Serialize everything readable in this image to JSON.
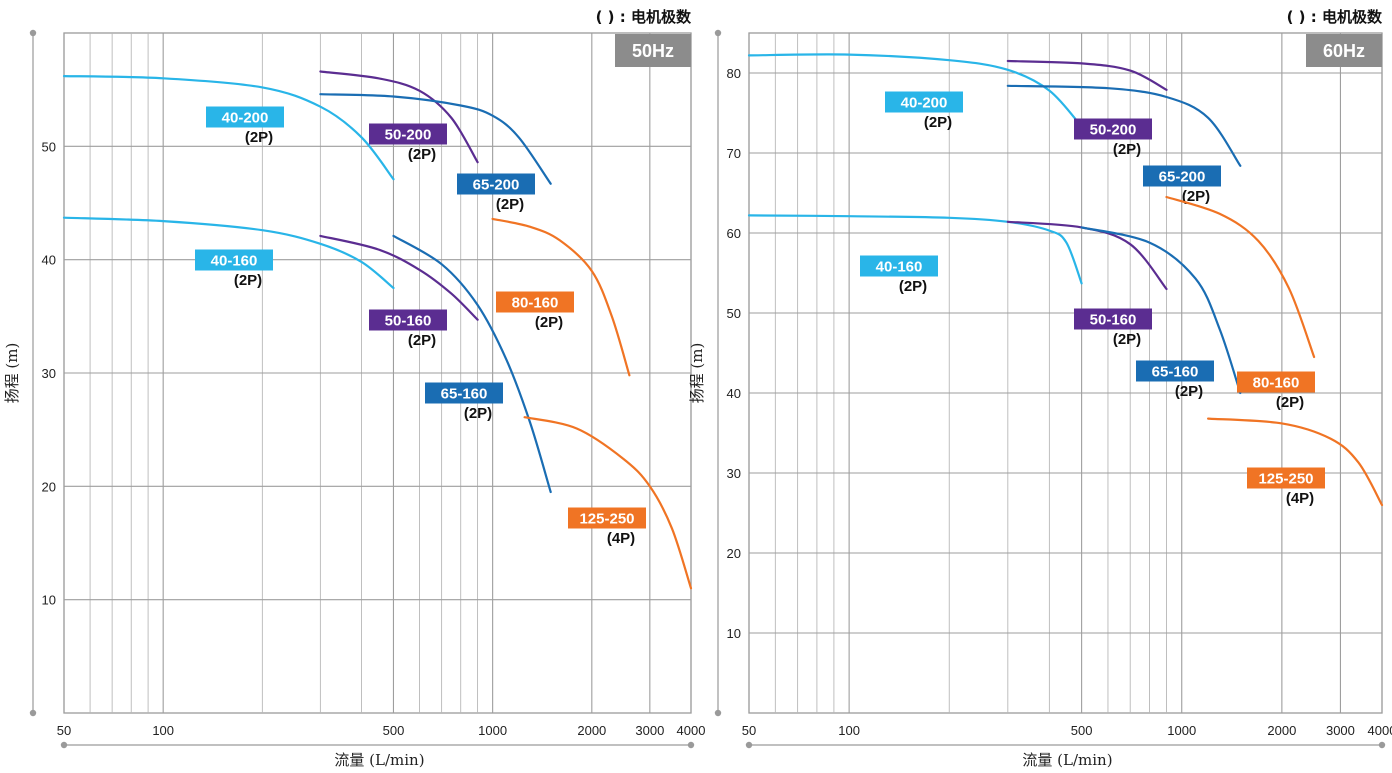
{
  "chart_data": [
    {
      "type": "line",
      "note": "( ) : 电机极数",
      "frequency": "50Hz",
      "xlabel": "流量 (L/min)",
      "ylabel": "扬程 (m)",
      "x_scale": "log",
      "xlim": [
        50,
        4000
      ],
      "ylim": [
        0,
        60
      ],
      "x_ticks": [
        "50",
        "100",
        "500",
        "1000",
        "2000",
        "3000",
        "4000"
      ],
      "y_ticks": [
        "10",
        "20",
        "30",
        "40",
        "50"
      ],
      "grid": true,
      "series": [
        {
          "name": "40-200",
          "poles": "(2P)",
          "color": "#29b5e8",
          "points": [
            [
              50,
              56.2
            ],
            [
              100,
              56.0
            ],
            [
              200,
              55.2
            ],
            [
              300,
              53.5
            ],
            [
              400,
              50.8
            ],
            [
              500,
              47.1
            ]
          ]
        },
        {
          "name": "50-200",
          "poles": "(2P)",
          "color": "#5b2d91",
          "points": [
            [
              300,
              56.6
            ],
            [
              450,
              56.0
            ],
            [
              600,
              54.9
            ],
            [
              750,
              52.5
            ],
            [
              900,
              48.6
            ]
          ]
        },
        {
          "name": "65-200",
          "poles": "(2P)",
          "color": "#1a6db3",
          "points": [
            [
              300,
              54.6
            ],
            [
              500,
              54.4
            ],
            [
              800,
              53.6
            ],
            [
              1000,
              52.7
            ],
            [
              1200,
              50.8
            ],
            [
              1500,
              46.7
            ]
          ]
        },
        {
          "name": "40-160",
          "poles": "(2P)",
          "color": "#29b5e8",
          "points": [
            [
              50,
              43.7
            ],
            [
              100,
              43.4
            ],
            [
              200,
              42.6
            ],
            [
              300,
              41.4
            ],
            [
              400,
              39.8
            ],
            [
              500,
              37.5
            ]
          ]
        },
        {
          "name": "50-160",
          "poles": "(2P)",
          "color": "#5b2d91",
          "points": [
            [
              300,
              42.1
            ],
            [
              450,
              40.9
            ],
            [
              600,
              39.1
            ],
            [
              750,
              37.0
            ],
            [
              900,
              34.7
            ]
          ]
        },
        {
          "name": "65-160",
          "poles": "(2P)",
          "color": "#1a6db3",
          "points": [
            [
              500,
              42.1
            ],
            [
              700,
              39.6
            ],
            [
              900,
              36.0
            ],
            [
              1100,
              31.2
            ],
            [
              1300,
              25.6
            ],
            [
              1500,
              19.5
            ]
          ]
        },
        {
          "name": "80-160",
          "poles": "(2P)",
          "color": "#f07424",
          "points": [
            [
              1000,
              43.6
            ],
            [
              1300,
              42.9
            ],
            [
              1600,
              41.7
            ],
            [
              2000,
              39.0
            ],
            [
              2300,
              35.0
            ],
            [
              2600,
              29.8
            ]
          ]
        },
        {
          "name": "125-250",
          "poles": "(4P)",
          "color": "#f07424",
          "points": [
            [
              1250,
              26.1
            ],
            [
              1800,
              25.1
            ],
            [
              2500,
              22.4
            ],
            [
              3000,
              20.0
            ],
            [
              3500,
              16.3
            ],
            [
              4000,
              11.0
            ]
          ]
        }
      ]
    },
    {
      "type": "line",
      "note": "( ) : 电机极数",
      "frequency": "60Hz",
      "xlabel": "流量 (L/min)",
      "ylabel": "扬程 (m)",
      "x_scale": "log",
      "xlim": [
        50,
        4000
      ],
      "ylim": [
        0,
        85
      ],
      "x_ticks": [
        "50",
        "100",
        "500",
        "1000",
        "2000",
        "3000",
        "4000"
      ],
      "y_ticks": [
        "10",
        "20",
        "30",
        "40",
        "50",
        "60",
        "70",
        "80"
      ],
      "grid": true,
      "series": [
        {
          "name": "40-200",
          "poles": "(2P)",
          "color": "#29b5e8",
          "points": [
            [
              50,
              82.2
            ],
            [
              100,
              82.3
            ],
            [
              200,
              81.6
            ],
            [
              300,
              80.4
            ],
            [
              400,
              77.8
            ],
            [
              500,
              73.3
            ]
          ]
        },
        {
          "name": "50-200",
          "poles": "(2P)",
          "color": "#5b2d91",
          "points": [
            [
              300,
              81.5
            ],
            [
              500,
              81.2
            ],
            [
              700,
              80.3
            ],
            [
              900,
              77.9
            ]
          ]
        },
        {
          "name": "65-200",
          "poles": "(2P)",
          "color": "#1a6db3",
          "points": [
            [
              300,
              78.4
            ],
            [
              600,
              78.1
            ],
            [
              900,
              77.0
            ],
            [
              1200,
              74.4
            ],
            [
              1500,
              68.4
            ]
          ]
        },
        {
          "name": "40-160",
          "poles": "(2P)",
          "color": "#29b5e8",
          "points": [
            [
              50,
              62.2
            ],
            [
              100,
              62.1
            ],
            [
              200,
              61.9
            ],
            [
              300,
              61.4
            ],
            [
              400,
              60.3
            ],
            [
              450,
              58.8
            ],
            [
              500,
              53.7
            ]
          ]
        },
        {
          "name": "50-160",
          "poles": "(2P)",
          "color": "#5b2d91",
          "points": [
            [
              300,
              61.4
            ],
            [
              500,
              60.7
            ],
            [
              700,
              58.6
            ],
            [
              900,
              53.0
            ]
          ]
        },
        {
          "name": "65-160",
          "poles": "(2P)",
          "color": "#1a6db3",
          "points": [
            [
              500,
              60.7
            ],
            [
              800,
              58.8
            ],
            [
              1100,
              54.3
            ],
            [
              1300,
              48.0
            ],
            [
              1500,
              40.0
            ]
          ]
        },
        {
          "name": "80-160",
          "poles": "(2P)",
          "color": "#f07424",
          "points": [
            [
              900,
              64.5
            ],
            [
              1300,
              62.4
            ],
            [
              1700,
              59.0
            ],
            [
              2100,
              53.1
            ],
            [
              2500,
              44.5
            ]
          ]
        },
        {
          "name": "125-250",
          "poles": "(4P)",
          "color": "#f07424",
          "points": [
            [
              1200,
              36.8
            ],
            [
              2000,
              36.2
            ],
            [
              2800,
              34.3
            ],
            [
              3400,
              31.3
            ],
            [
              4000,
              26.0
            ]
          ]
        }
      ]
    }
  ]
}
